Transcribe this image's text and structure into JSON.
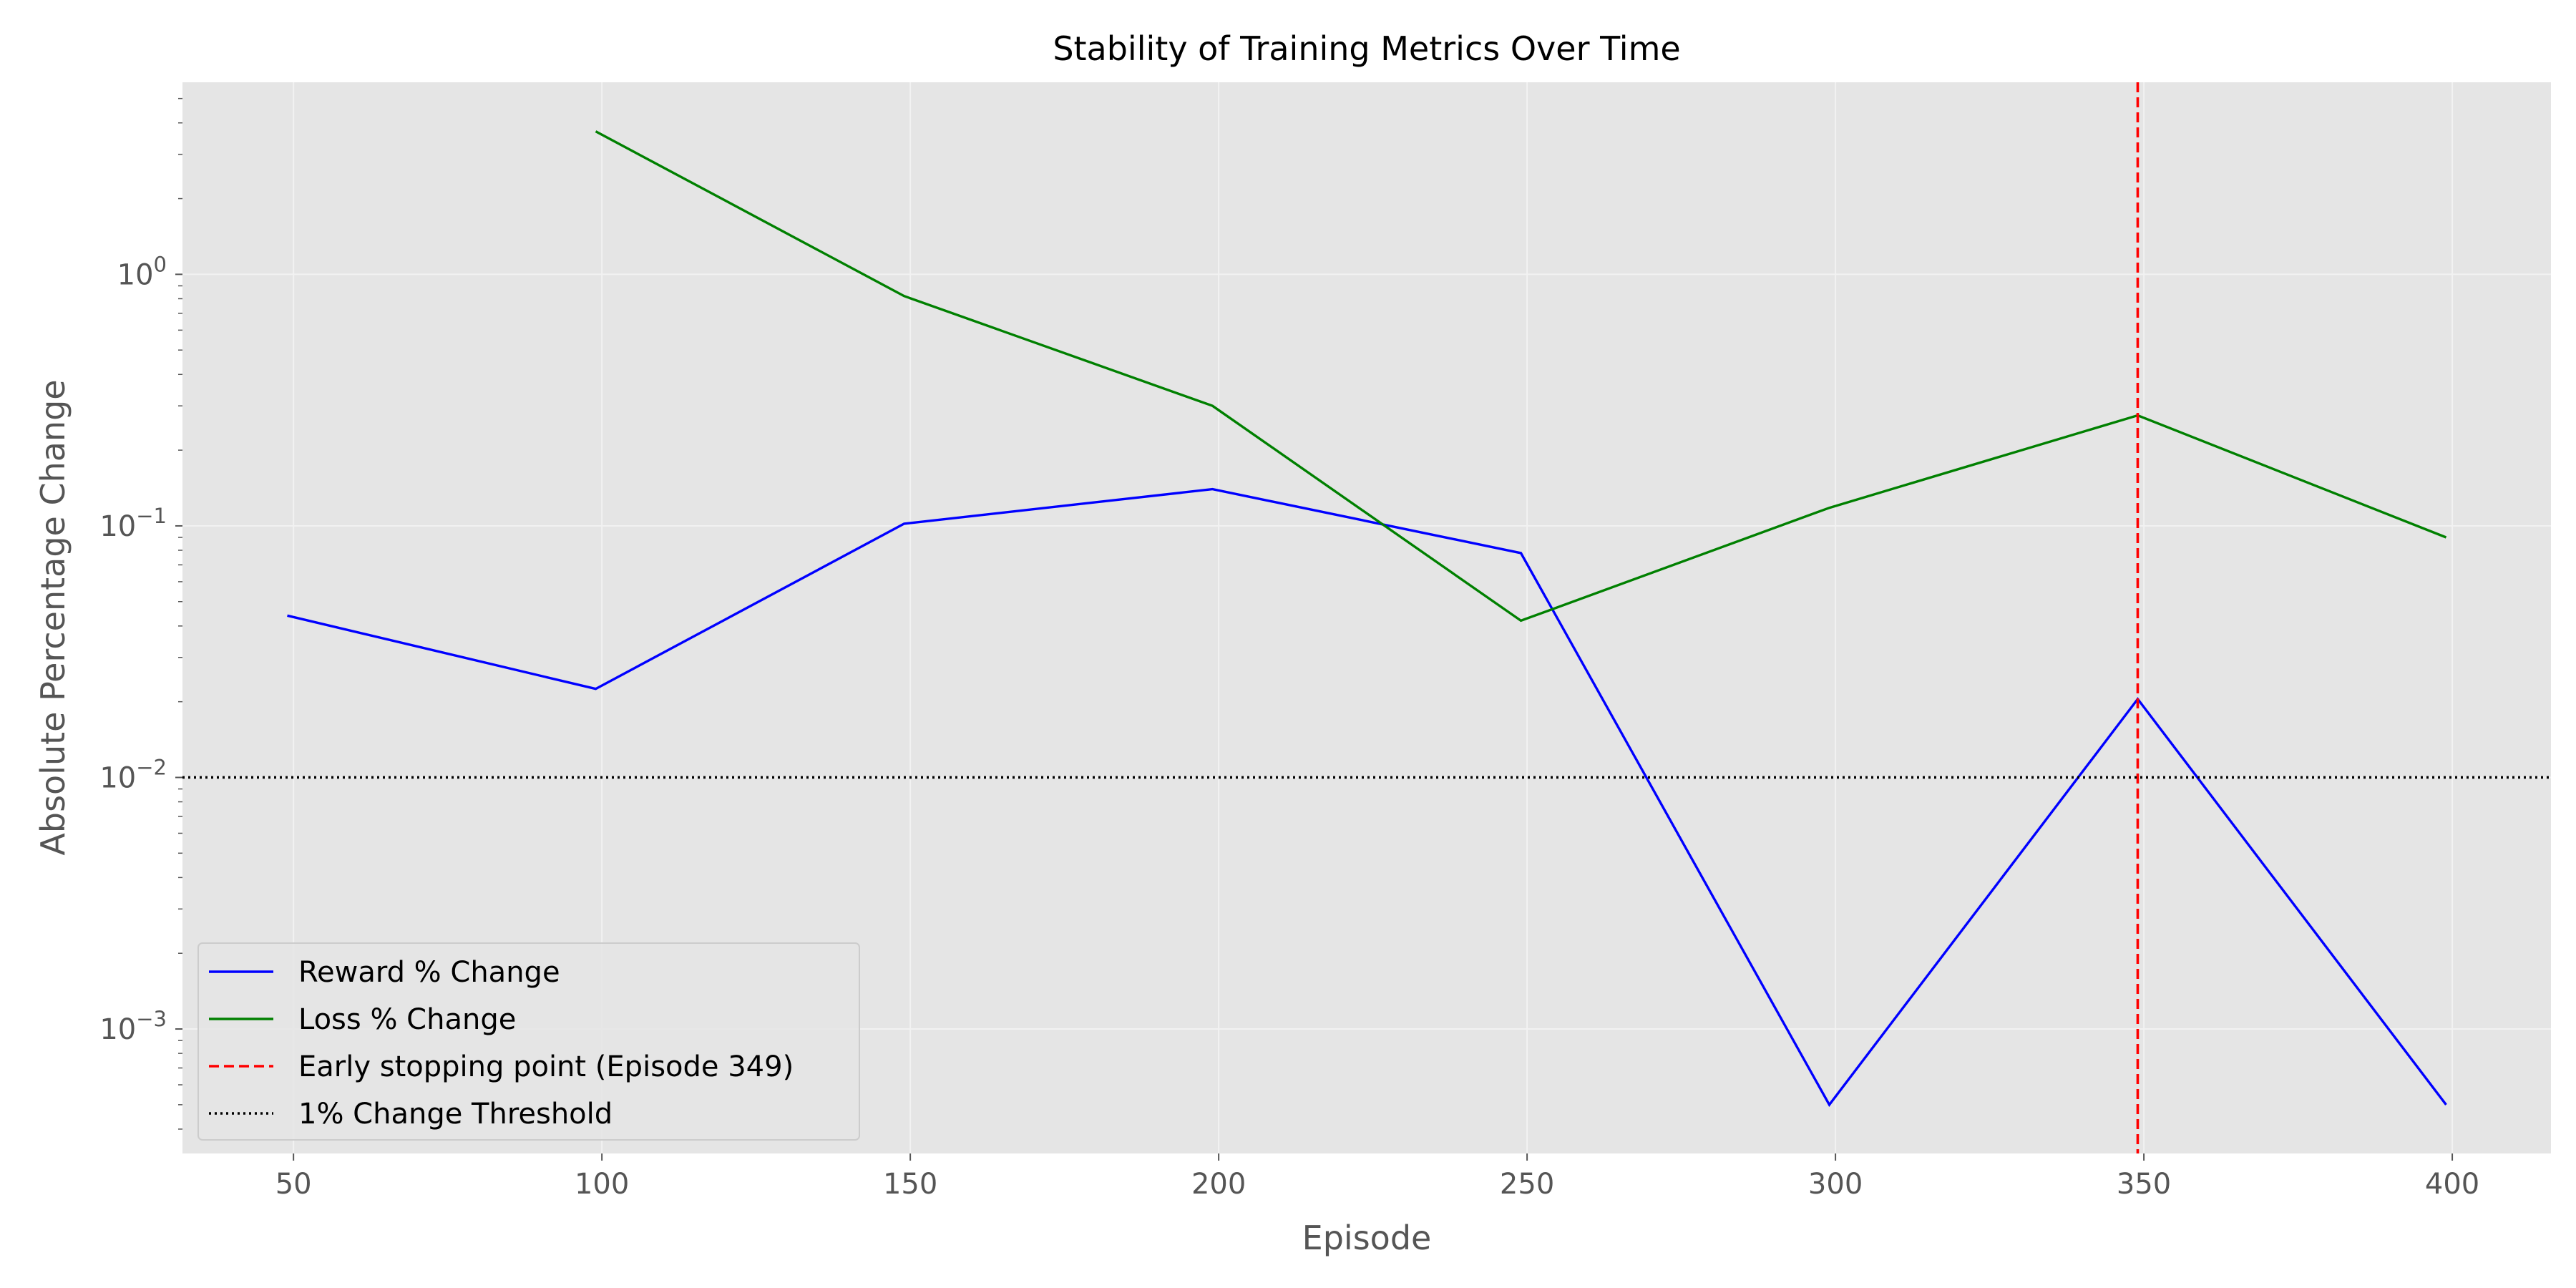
{
  "chart_data": {
    "type": "line",
    "title": "Stability of Training Metrics Over Time",
    "xlabel": "Episode",
    "ylabel": "Absolute Percentage Change",
    "xlim": [
      32,
      416
    ],
    "ylim": [
      0.00032,
      5.8
    ],
    "x_scale": "linear",
    "y_scale": "log",
    "grid": true,
    "legend_position": "lower-left",
    "x_ticks": [
      {
        "value": 50,
        "label": "50"
      },
      {
        "value": 100,
        "label": "100"
      },
      {
        "value": 150,
        "label": "150"
      },
      {
        "value": 200,
        "label": "200"
      },
      {
        "value": 250,
        "label": "250"
      },
      {
        "value": 300,
        "label": "300"
      },
      {
        "value": 350,
        "label": "350"
      },
      {
        "value": 400,
        "label": "400"
      }
    ],
    "y_ticks": [
      {
        "value": 0.001,
        "base": "10",
        "exp": "−3"
      },
      {
        "value": 0.01,
        "base": "10",
        "exp": "−2"
      },
      {
        "value": 0.1,
        "base": "10",
        "exp": "−1"
      },
      {
        "value": 1,
        "base": "10",
        "exp": "0"
      }
    ],
    "series": [
      {
        "name": "Reward % Change",
        "color": "#0000ff",
        "style": "solid",
        "points": [
          {
            "x": 49,
            "y": 0.044
          },
          {
            "x": 99,
            "y": 0.0225
          },
          {
            "x": 149,
            "y": 0.102
          },
          {
            "x": 199,
            "y": 0.14
          },
          {
            "x": 249,
            "y": 0.078
          },
          {
            "x": 299,
            "y": 0.0005
          },
          {
            "x": 349,
            "y": 0.0205
          },
          {
            "x": 399,
            "y": 0.0005
          }
        ]
      },
      {
        "name": "Loss % Change",
        "color": "#008000",
        "style": "solid",
        "points": [
          {
            "x": 99,
            "y": 3.7
          },
          {
            "x": 149,
            "y": 0.82
          },
          {
            "x": 199,
            "y": 0.3
          },
          {
            "x": 249,
            "y": 0.042
          },
          {
            "x": 299,
            "y": 0.118
          },
          {
            "x": 349,
            "y": 0.275
          },
          {
            "x": 399,
            "y": 0.09
          }
        ]
      }
    ],
    "reference_lines": [
      {
        "name": "Early stopping point (Episode 349)",
        "orientation": "vertical",
        "x": 349,
        "color": "#ff0000",
        "style": "dashed"
      },
      {
        "name": "1% Change Threshold",
        "orientation": "horizontal",
        "y": 0.01,
        "color": "#000000",
        "style": "dotted"
      }
    ],
    "legend": [
      {
        "label": "Reward % Change",
        "color": "#0000ff",
        "style": "solid"
      },
      {
        "label": "Loss % Change",
        "color": "#008000",
        "style": "solid"
      },
      {
        "label": "Early stopping point (Episode 349)",
        "color": "#ff0000",
        "style": "dashed"
      },
      {
        "label": "1% Change Threshold",
        "color": "#000000",
        "style": "dotted"
      }
    ],
    "colors": {
      "plot_background": "#e5e5e5",
      "grid": "#f2f2f2",
      "tick_text": "#555555",
      "label_text": "#555555",
      "title_text": "#000000"
    }
  }
}
